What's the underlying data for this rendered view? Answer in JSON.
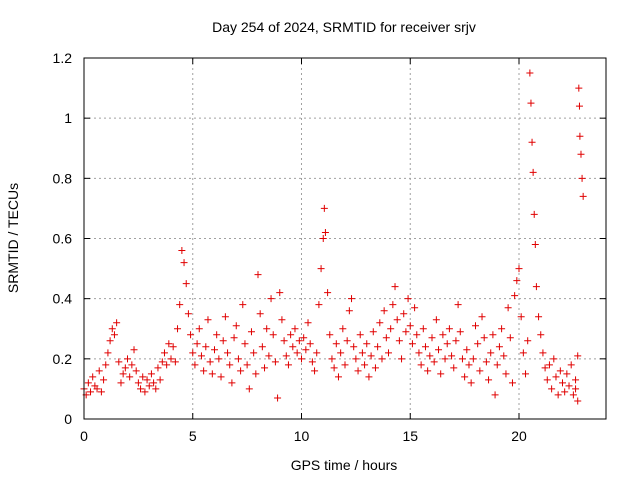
{
  "chart_data": {
    "type": "scatter",
    "title": "Day 254 of 2024, SRMTID for receiver srjv",
    "xlabel": "GPS time / hours",
    "ylabel": "SRMTID / TECUs",
    "xlim": [
      0,
      24
    ],
    "ylim": [
      0,
      1.2
    ],
    "xticks": [
      0,
      5,
      10,
      15,
      20
    ],
    "yticks": [
      0,
      0.2,
      0.4,
      0.6,
      0.8,
      1,
      1.2
    ],
    "ytick_labels": [
      "0",
      "0.2",
      "0.4",
      "0.6",
      "0.8",
      "1",
      "1.2"
    ],
    "grid": true,
    "marker": "+",
    "series": [
      {
        "name": "SRMTID",
        "color": "#e00000",
        "points": [
          [
            0.0,
            0.1
          ],
          [
            0.1,
            0.08
          ],
          [
            0.2,
            0.12
          ],
          [
            0.3,
            0.09
          ],
          [
            0.4,
            0.14
          ],
          [
            0.5,
            0.11
          ],
          [
            0.6,
            0.1
          ],
          [
            0.7,
            0.16
          ],
          [
            0.8,
            0.09
          ],
          [
            0.9,
            0.13
          ],
          [
            1.0,
            0.18
          ],
          [
            1.1,
            0.22
          ],
          [
            1.2,
            0.26
          ],
          [
            1.3,
            0.3
          ],
          [
            1.4,
            0.28
          ],
          [
            1.5,
            0.32
          ],
          [
            1.6,
            0.19
          ],
          [
            1.7,
            0.12
          ],
          [
            1.8,
            0.15
          ],
          [
            1.9,
            0.17
          ],
          [
            2.0,
            0.2
          ],
          [
            2.1,
            0.14
          ],
          [
            2.2,
            0.18
          ],
          [
            2.3,
            0.23
          ],
          [
            2.4,
            0.16
          ],
          [
            2.5,
            0.12
          ],
          [
            2.6,
            0.1
          ],
          [
            2.7,
            0.14
          ],
          [
            2.8,
            0.09
          ],
          [
            2.9,
            0.13
          ],
          [
            3.0,
            0.11
          ],
          [
            3.1,
            0.15
          ],
          [
            3.2,
            0.12
          ],
          [
            3.3,
            0.1
          ],
          [
            3.4,
            0.17
          ],
          [
            3.5,
            0.13
          ],
          [
            3.6,
            0.19
          ],
          [
            3.7,
            0.22
          ],
          [
            3.8,
            0.18
          ],
          [
            3.9,
            0.25
          ],
          [
            4.0,
            0.2
          ],
          [
            4.1,
            0.24
          ],
          [
            4.2,
            0.19
          ],
          [
            4.3,
            0.3
          ],
          [
            4.4,
            0.38
          ],
          [
            4.5,
            0.56
          ],
          [
            4.6,
            0.52
          ],
          [
            4.7,
            0.45
          ],
          [
            4.8,
            0.35
          ],
          [
            4.9,
            0.28
          ],
          [
            5.0,
            0.22
          ],
          [
            5.1,
            0.18
          ],
          [
            5.2,
            0.25
          ],
          [
            5.3,
            0.3
          ],
          [
            5.4,
            0.21
          ],
          [
            5.5,
            0.16
          ],
          [
            5.6,
            0.24
          ],
          [
            5.7,
            0.33
          ],
          [
            5.8,
            0.19
          ],
          [
            5.9,
            0.15
          ],
          [
            6.0,
            0.23
          ],
          [
            6.1,
            0.28
          ],
          [
            6.2,
            0.2
          ],
          [
            6.3,
            0.14
          ],
          [
            6.4,
            0.26
          ],
          [
            6.5,
            0.34
          ],
          [
            6.6,
            0.22
          ],
          [
            6.7,
            0.18
          ],
          [
            6.8,
            0.12
          ],
          [
            6.9,
            0.27
          ],
          [
            7.0,
            0.31
          ],
          [
            7.1,
            0.2
          ],
          [
            7.2,
            0.16
          ],
          [
            7.3,
            0.38
          ],
          [
            7.4,
            0.25
          ],
          [
            7.5,
            0.18
          ],
          [
            7.6,
            0.1
          ],
          [
            7.7,
            0.29
          ],
          [
            7.8,
            0.22
          ],
          [
            7.9,
            0.15
          ],
          [
            8.0,
            0.48
          ],
          [
            8.1,
            0.35
          ],
          [
            8.2,
            0.24
          ],
          [
            8.3,
            0.17
          ],
          [
            8.4,
            0.3
          ],
          [
            8.5,
            0.21
          ],
          [
            8.6,
            0.4
          ],
          [
            8.7,
            0.28
          ],
          [
            8.8,
            0.19
          ],
          [
            8.9,
            0.07
          ],
          [
            9.0,
            0.42
          ],
          [
            9.1,
            0.33
          ],
          [
            9.2,
            0.26
          ],
          [
            9.3,
            0.21
          ],
          [
            9.4,
            0.18
          ],
          [
            9.5,
            0.28
          ],
          [
            9.6,
            0.24
          ],
          [
            9.7,
            0.3
          ],
          [
            9.8,
            0.22
          ],
          [
            9.9,
            0.26
          ],
          [
            10.0,
            0.2
          ],
          [
            10.1,
            0.27
          ],
          [
            10.2,
            0.23
          ],
          [
            10.3,
            0.32
          ],
          [
            10.4,
            0.25
          ],
          [
            10.5,
            0.19
          ],
          [
            10.6,
            0.16
          ],
          [
            10.7,
            0.22
          ],
          [
            10.8,
            0.38
          ],
          [
            10.9,
            0.5
          ],
          [
            11.0,
            0.6
          ],
          [
            11.05,
            0.7
          ],
          [
            11.1,
            0.62
          ],
          [
            11.2,
            0.42
          ],
          [
            11.3,
            0.28
          ],
          [
            11.4,
            0.2
          ],
          [
            11.5,
            0.17
          ],
          [
            11.6,
            0.25
          ],
          [
            11.7,
            0.14
          ],
          [
            11.8,
            0.22
          ],
          [
            11.9,
            0.3
          ],
          [
            12.0,
            0.18
          ],
          [
            12.1,
            0.26
          ],
          [
            12.2,
            0.36
          ],
          [
            12.3,
            0.4
          ],
          [
            12.4,
            0.24
          ],
          [
            12.5,
            0.2
          ],
          [
            12.6,
            0.16
          ],
          [
            12.7,
            0.28
          ],
          [
            12.8,
            0.22
          ],
          [
            12.9,
            0.18
          ],
          [
            13.0,
            0.25
          ],
          [
            13.1,
            0.14
          ],
          [
            13.2,
            0.21
          ],
          [
            13.3,
            0.29
          ],
          [
            13.4,
            0.17
          ],
          [
            13.5,
            0.24
          ],
          [
            13.6,
            0.32
          ],
          [
            13.7,
            0.2
          ],
          [
            13.8,
            0.36
          ],
          [
            13.9,
            0.27
          ],
          [
            14.0,
            0.22
          ],
          [
            14.1,
            0.3
          ],
          [
            14.2,
            0.38
          ],
          [
            14.3,
            0.44
          ],
          [
            14.4,
            0.33
          ],
          [
            14.5,
            0.26
          ],
          [
            14.6,
            0.2
          ],
          [
            14.7,
            0.35
          ],
          [
            14.8,
            0.29
          ],
          [
            14.9,
            0.4
          ],
          [
            15.0,
            0.31
          ],
          [
            15.1,
            0.25
          ],
          [
            15.2,
            0.37
          ],
          [
            15.3,
            0.28
          ],
          [
            15.4,
            0.22
          ],
          [
            15.5,
            0.18
          ],
          [
            15.6,
            0.3
          ],
          [
            15.7,
            0.24
          ],
          [
            15.8,
            0.16
          ],
          [
            15.9,
            0.21
          ],
          [
            16.0,
            0.27
          ],
          [
            16.1,
            0.19
          ],
          [
            16.2,
            0.33
          ],
          [
            16.3,
            0.23
          ],
          [
            16.4,
            0.15
          ],
          [
            16.5,
            0.28
          ],
          [
            16.6,
            0.2
          ],
          [
            16.7,
            0.25
          ],
          [
            16.8,
            0.3
          ],
          [
            16.9,
            0.21
          ],
          [
            17.0,
            0.17
          ],
          [
            17.1,
            0.26
          ],
          [
            17.2,
            0.38
          ],
          [
            17.3,
            0.29
          ],
          [
            17.4,
            0.2
          ],
          [
            17.5,
            0.14
          ],
          [
            17.6,
            0.23
          ],
          [
            17.7,
            0.18
          ],
          [
            17.8,
            0.12
          ],
          [
            17.9,
            0.2
          ],
          [
            18.0,
            0.31
          ],
          [
            18.1,
            0.25
          ],
          [
            18.2,
            0.16
          ],
          [
            18.3,
            0.34
          ],
          [
            18.4,
            0.27
          ],
          [
            18.5,
            0.19
          ],
          [
            18.6,
            0.13
          ],
          [
            18.7,
            0.22
          ],
          [
            18.8,
            0.28
          ],
          [
            18.9,
            0.08
          ],
          [
            19.0,
            0.18
          ],
          [
            19.1,
            0.24
          ],
          [
            19.2,
            0.3
          ],
          [
            19.3,
            0.21
          ],
          [
            19.4,
            0.15
          ],
          [
            19.5,
            0.37
          ],
          [
            19.6,
            0.27
          ],
          [
            19.7,
            0.12
          ],
          [
            19.8,
            0.41
          ],
          [
            19.9,
            0.46
          ],
          [
            20.0,
            0.5
          ],
          [
            20.1,
            0.34
          ],
          [
            20.2,
            0.22
          ],
          [
            20.3,
            0.15
          ],
          [
            20.4,
            0.26
          ],
          [
            20.5,
            1.15
          ],
          [
            20.55,
            1.05
          ],
          [
            20.6,
            0.92
          ],
          [
            20.65,
            0.82
          ],
          [
            20.7,
            0.68
          ],
          [
            20.75,
            0.58
          ],
          [
            20.8,
            0.44
          ],
          [
            20.9,
            0.34
          ],
          [
            21.0,
            0.28
          ],
          [
            21.1,
            0.22
          ],
          [
            21.2,
            0.17
          ],
          [
            21.3,
            0.13
          ],
          [
            21.4,
            0.18
          ],
          [
            21.5,
            0.1
          ],
          [
            21.6,
            0.2
          ],
          [
            21.7,
            0.14
          ],
          [
            21.8,
            0.08
          ],
          [
            21.9,
            0.16
          ],
          [
            22.0,
            0.12
          ],
          [
            22.1,
            0.09
          ],
          [
            22.2,
            0.15
          ],
          [
            22.3,
            0.11
          ],
          [
            22.4,
            0.18
          ],
          [
            22.5,
            0.08
          ],
          [
            22.6,
            0.13
          ],
          [
            22.7,
            0.21
          ],
          [
            22.75,
            1.1
          ],
          [
            22.78,
            1.04
          ],
          [
            22.8,
            0.94
          ],
          [
            22.85,
            0.88
          ],
          [
            22.9,
            0.8
          ],
          [
            22.95,
            0.74
          ],
          [
            22.7,
            0.06
          ],
          [
            22.6,
            0.1
          ]
        ]
      }
    ]
  }
}
